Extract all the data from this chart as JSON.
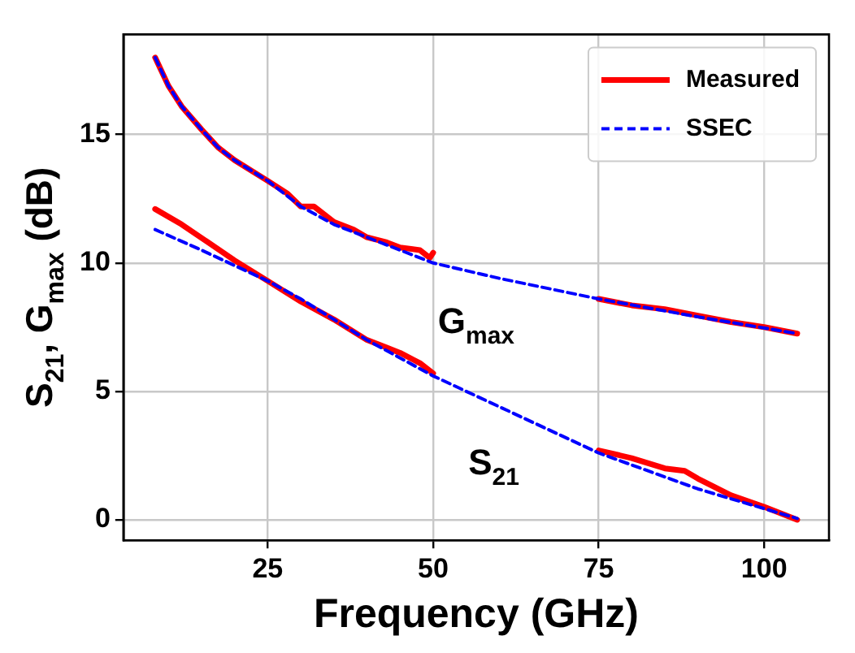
{
  "chart_data": {
    "type": "line",
    "xlabel": "Frequency (GHz)",
    "ylabel": "S$_{21}$, G$_{max}$ (dB)",
    "xlim": [
      3.2,
      109.8
    ],
    "ylim": [
      -0.8,
      18.9
    ],
    "xticks": [
      25,
      50,
      75,
      100
    ],
    "yticks": [
      0,
      5,
      10,
      15
    ],
    "grid": true,
    "legend": "top right",
    "marker": "none",
    "series": [
      {
        "name": "Measured",
        "color": "#ff0000",
        "line_style": "solid",
        "x": [
          8,
          10,
          12,
          15,
          17.5,
          20,
          25,
          28,
          30,
          32,
          35,
          38,
          40,
          43,
          45,
          48,
          49.5,
          50,
          null,
          75,
          80,
          85,
          90,
          95,
          100,
          105
        ],
        "values": [
          18.0,
          16.9,
          16.1,
          15.2,
          14.5,
          14.0,
          13.2,
          12.7,
          12.2,
          12.2,
          11.6,
          11.3,
          11.0,
          10.8,
          10.6,
          10.5,
          10.2,
          10.4,
          null,
          8.6,
          8.35,
          8.2,
          7.95,
          7.7,
          7.5,
          7.25
        ]
      },
      {
        "color": "#ff0000",
        "line_style": "solid",
        "x": [
          8,
          12,
          16,
          20,
          25,
          30,
          35,
          40,
          43,
          45,
          48,
          50,
          null,
          75,
          80,
          85,
          88,
          90,
          95,
          100,
          105
        ],
        "values": [
          12.1,
          11.5,
          10.8,
          10.1,
          9.3,
          8.5,
          7.8,
          7.0,
          6.7,
          6.5,
          6.1,
          5.7,
          null,
          2.7,
          2.4,
          2.0,
          1.9,
          1.6,
          0.95,
          0.5,
          0.0
        ]
      },
      {
        "name": "SSEC",
        "color": "#0000ff",
        "line_style": "dashed",
        "x": [
          8,
          10,
          12,
          15,
          17.5,
          20,
          25,
          30,
          35,
          40,
          45,
          50,
          60,
          75,
          90,
          105
        ],
        "values": [
          18.0,
          16.9,
          16.1,
          15.2,
          14.5,
          14.0,
          13.2,
          12.2,
          11.5,
          11.0,
          10.5,
          10.0,
          9.4,
          8.6,
          7.9,
          7.25
        ]
      },
      {
        "color": "#0000ff",
        "line_style": "dashed",
        "x": [
          8,
          15,
          25,
          30,
          35,
          40,
          45,
          50,
          60,
          75,
          90,
          105
        ],
        "values": [
          11.3,
          10.5,
          9.3,
          8.6,
          7.8,
          7.0,
          6.3,
          5.6,
          4.4,
          2.6,
          1.2,
          0.05
        ]
      }
    ],
    "annotations": [
      "G$_{max}$",
      "S$_{21}$"
    ]
  }
}
